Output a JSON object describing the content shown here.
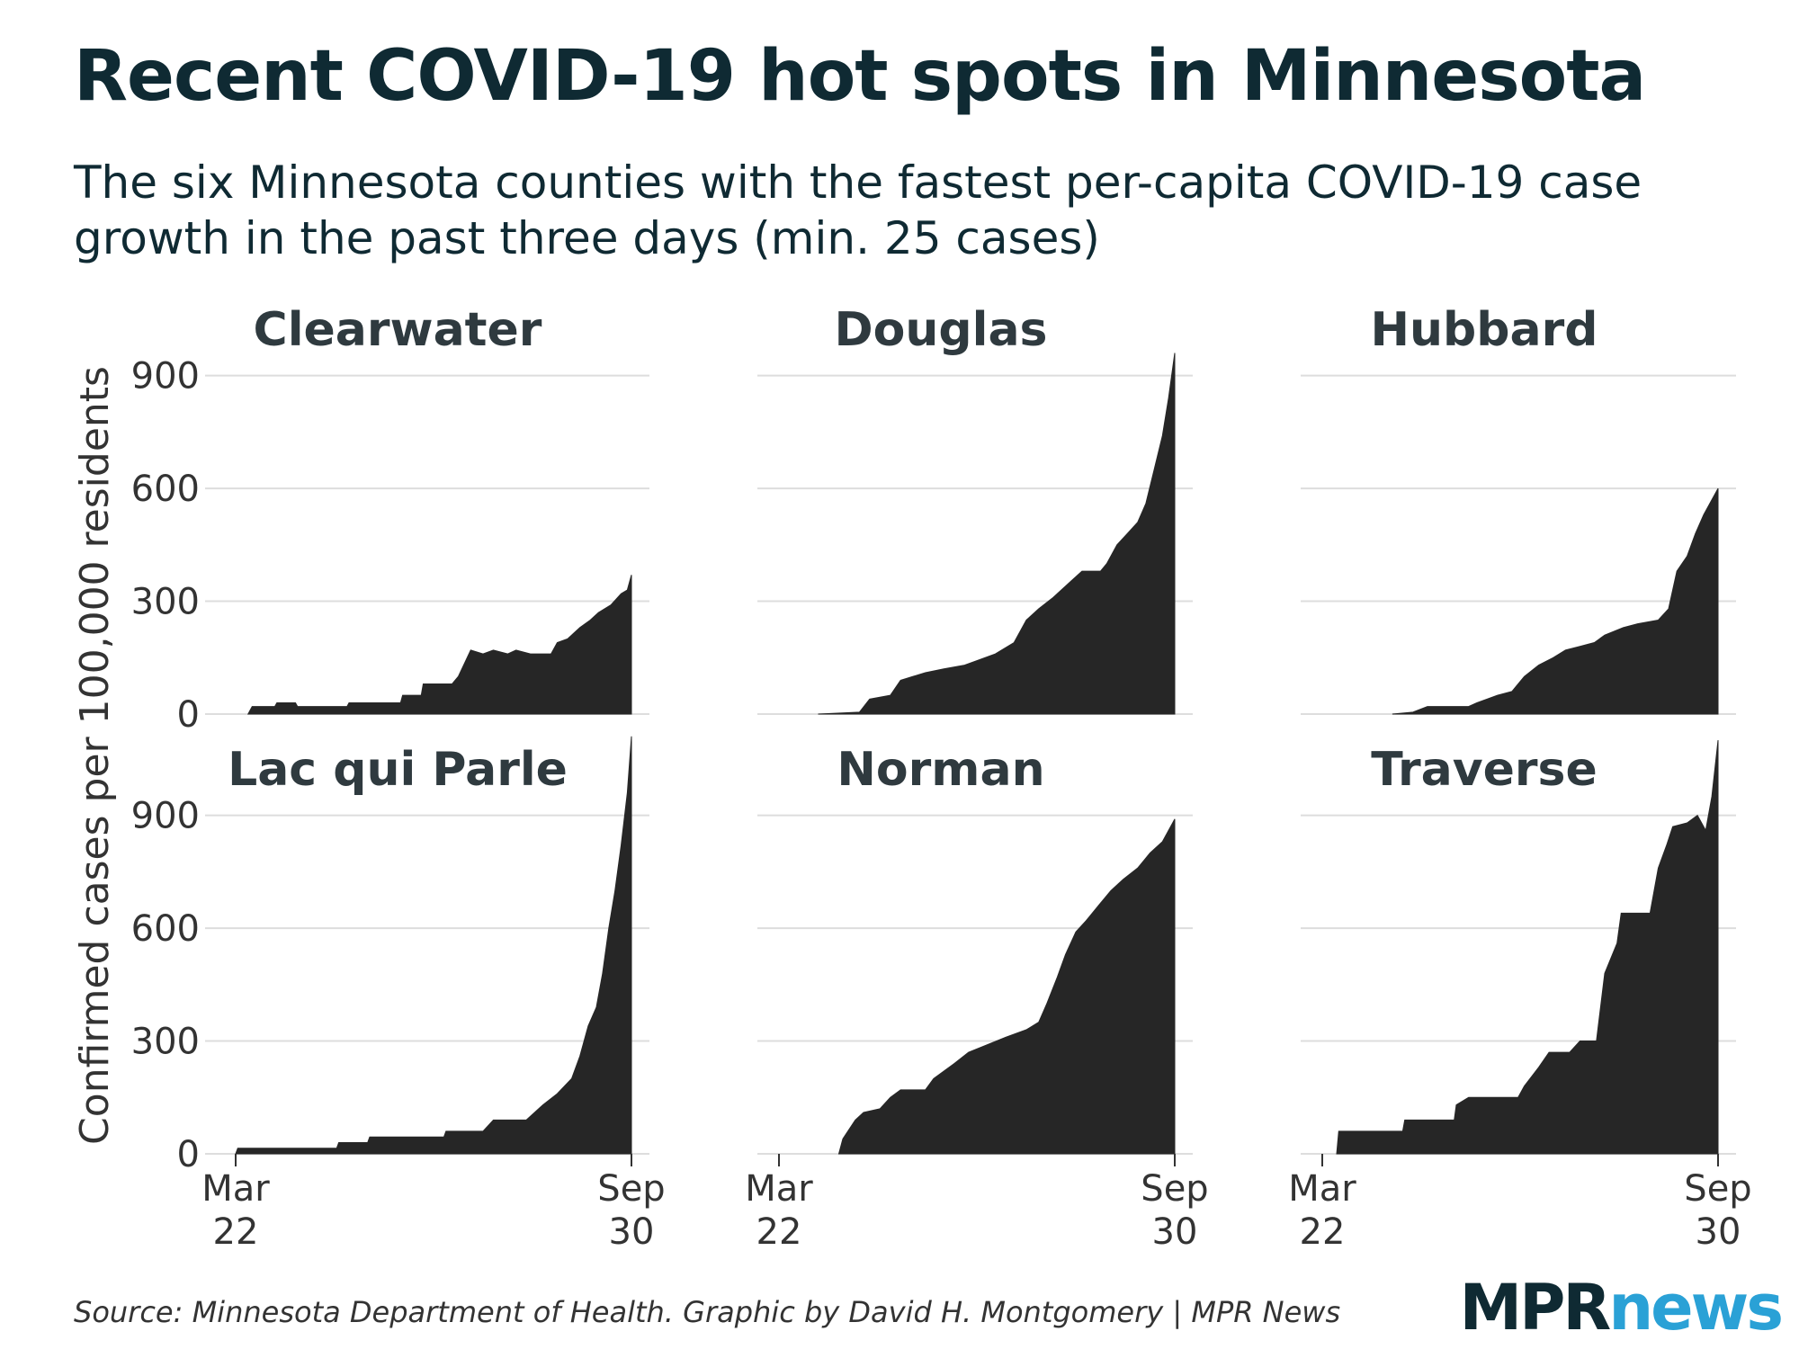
{
  "title": "Recent COVID-19 hot spots in Minnesota",
  "subtitle": "The six Minnesota counties with the fastest per-capita COVID-19 case growth in the past three days (min. 25 cases)",
  "source": "Source: Minnesota Department of Health. Graphic by David H. Montgomery | MPR News",
  "logo": {
    "part1": "MPR",
    "part2": "news"
  },
  "colors": {
    "fill": "#262626",
    "grid": "#dddddd",
    "text": "#0f2a33",
    "axis_text": "#333333",
    "logo_accent": "#2aa1d6"
  },
  "chart_data": {
    "type": "area",
    "ylabel": "Confirmed cases per 100,000 residents",
    "ylim": [
      0,
      1100
    ],
    "yticks": [
      "0",
      "300",
      "600",
      "900"
    ],
    "xrange": [
      "2020-03-22",
      "2020-09-30"
    ],
    "xticks": [
      {
        "date": "2020-03-22",
        "line1": "Mar",
        "line2": "22"
      },
      {
        "date": "2020-09-30",
        "line1": "Sep",
        "line2": "30"
      }
    ],
    "grid": true,
    "panels": [
      {
        "name": "Clearwater",
        "points": [
          [
            "2020-03-28",
            0
          ],
          [
            "2020-03-29",
            10
          ],
          [
            "2020-03-30",
            20
          ],
          [
            "2020-04-10",
            20
          ],
          [
            "2020-04-11",
            30
          ],
          [
            "2020-04-20",
            30
          ],
          [
            "2020-04-21",
            20
          ],
          [
            "2020-05-15",
            20
          ],
          [
            "2020-05-16",
            30
          ],
          [
            "2020-06-10",
            30
          ],
          [
            "2020-06-11",
            50
          ],
          [
            "2020-06-20",
            50
          ],
          [
            "2020-06-21",
            80
          ],
          [
            "2020-07-05",
            80
          ],
          [
            "2020-07-08",
            100
          ],
          [
            "2020-07-14",
            170
          ],
          [
            "2020-07-20",
            160
          ],
          [
            "2020-07-25",
            170
          ],
          [
            "2020-08-01",
            160
          ],
          [
            "2020-08-05",
            170
          ],
          [
            "2020-08-12",
            160
          ],
          [
            "2020-08-22",
            160
          ],
          [
            "2020-08-25",
            190
          ],
          [
            "2020-08-30",
            200
          ],
          [
            "2020-09-05",
            230
          ],
          [
            "2020-09-10",
            250
          ],
          [
            "2020-09-14",
            270
          ],
          [
            "2020-09-20",
            290
          ],
          [
            "2020-09-25",
            320
          ],
          [
            "2020-09-28",
            330
          ],
          [
            "2020-09-30",
            370
          ]
        ]
      },
      {
        "name": "Douglas",
        "points": [
          [
            "2020-04-10",
            0
          ],
          [
            "2020-04-30",
            5
          ],
          [
            "2020-05-05",
            40
          ],
          [
            "2020-05-15",
            50
          ],
          [
            "2020-05-20",
            90
          ],
          [
            "2020-06-01",
            110
          ],
          [
            "2020-06-10",
            120
          ],
          [
            "2020-06-20",
            130
          ],
          [
            "2020-06-25",
            140
          ],
          [
            "2020-07-05",
            160
          ],
          [
            "2020-07-14",
            190
          ],
          [
            "2020-07-20",
            250
          ],
          [
            "2020-07-26",
            280
          ],
          [
            "2020-08-02",
            310
          ],
          [
            "2020-08-10",
            350
          ],
          [
            "2020-08-16",
            380
          ],
          [
            "2020-08-25",
            380
          ],
          [
            "2020-08-28",
            400
          ],
          [
            "2020-09-02",
            450
          ],
          [
            "2020-09-07",
            480
          ],
          [
            "2020-09-12",
            510
          ],
          [
            "2020-09-16",
            560
          ],
          [
            "2020-09-20",
            650
          ],
          [
            "2020-09-24",
            740
          ],
          [
            "2020-09-27",
            840
          ],
          [
            "2020-09-30",
            960
          ]
        ]
      },
      {
        "name": "Hubbard",
        "points": [
          [
            "2020-04-25",
            0
          ],
          [
            "2020-05-05",
            5
          ],
          [
            "2020-05-12",
            20
          ],
          [
            "2020-05-25",
            20
          ],
          [
            "2020-06-01",
            20
          ],
          [
            "2020-06-05",
            30
          ],
          [
            "2020-06-15",
            50
          ],
          [
            "2020-06-22",
            60
          ],
          [
            "2020-06-28",
            100
          ],
          [
            "2020-07-05",
            130
          ],
          [
            "2020-07-12",
            150
          ],
          [
            "2020-07-18",
            170
          ],
          [
            "2020-07-25",
            180
          ],
          [
            "2020-08-01",
            190
          ],
          [
            "2020-08-06",
            210
          ],
          [
            "2020-08-15",
            230
          ],
          [
            "2020-08-22",
            240
          ],
          [
            "2020-09-01",
            250
          ],
          [
            "2020-09-06",
            280
          ],
          [
            "2020-09-10",
            380
          ],
          [
            "2020-09-15",
            420
          ],
          [
            "2020-09-19",
            480
          ],
          [
            "2020-09-23",
            530
          ],
          [
            "2020-09-30",
            600
          ]
        ]
      },
      {
        "name": "Lac qui Parle",
        "points": [
          [
            "2020-03-22",
            0
          ],
          [
            "2020-03-23",
            15
          ],
          [
            "2020-05-10",
            15
          ],
          [
            "2020-05-11",
            30
          ],
          [
            "2020-05-25",
            30
          ],
          [
            "2020-05-26",
            45
          ],
          [
            "2020-07-01",
            45
          ],
          [
            "2020-07-02",
            60
          ],
          [
            "2020-07-20",
            60
          ],
          [
            "2020-07-25",
            90
          ],
          [
            "2020-08-10",
            90
          ],
          [
            "2020-08-18",
            130
          ],
          [
            "2020-08-25",
            160
          ],
          [
            "2020-09-01",
            200
          ],
          [
            "2020-09-05",
            260
          ],
          [
            "2020-09-09",
            340
          ],
          [
            "2020-09-13",
            390
          ],
          [
            "2020-09-16",
            480
          ],
          [
            "2020-09-19",
            600
          ],
          [
            "2020-09-22",
            700
          ],
          [
            "2020-09-25",
            820
          ],
          [
            "2020-09-28",
            960
          ],
          [
            "2020-09-30",
            1110
          ]
        ]
      },
      {
        "name": "Norman",
        "points": [
          [
            "2020-04-20",
            0
          ],
          [
            "2020-04-22",
            40
          ],
          [
            "2020-04-28",
            90
          ],
          [
            "2020-05-02",
            110
          ],
          [
            "2020-05-10",
            120
          ],
          [
            "2020-05-15",
            150
          ],
          [
            "2020-05-20",
            170
          ],
          [
            "2020-06-01",
            170
          ],
          [
            "2020-06-05",
            200
          ],
          [
            "2020-06-15",
            240
          ],
          [
            "2020-06-22",
            270
          ],
          [
            "2020-07-01",
            290
          ],
          [
            "2020-07-10",
            310
          ],
          [
            "2020-07-20",
            330
          ],
          [
            "2020-07-26",
            350
          ],
          [
            "2020-07-30",
            400
          ],
          [
            "2020-08-04",
            470
          ],
          [
            "2020-08-08",
            530
          ],
          [
            "2020-08-13",
            590
          ],
          [
            "2020-08-18",
            620
          ],
          [
            "2020-08-24",
            660
          ],
          [
            "2020-08-30",
            700
          ],
          [
            "2020-09-05",
            730
          ],
          [
            "2020-09-12",
            760
          ],
          [
            "2020-09-18",
            800
          ],
          [
            "2020-09-24",
            830
          ],
          [
            "2020-09-30",
            890
          ]
        ]
      },
      {
        "name": "Traverse",
        "points": [
          [
            "2020-03-29",
            0
          ],
          [
            "2020-03-30",
            60
          ],
          [
            "2020-04-30",
            60
          ],
          [
            "2020-05-01",
            90
          ],
          [
            "2020-05-25",
            90
          ],
          [
            "2020-05-26",
            130
          ],
          [
            "2020-06-01",
            150
          ],
          [
            "2020-06-25",
            150
          ],
          [
            "2020-06-28",
            180
          ],
          [
            "2020-07-05",
            230
          ],
          [
            "2020-07-10",
            270
          ],
          [
            "2020-07-20",
            270
          ],
          [
            "2020-07-25",
            300
          ],
          [
            "2020-08-02",
            300
          ],
          [
            "2020-08-06",
            480
          ],
          [
            "2020-08-12",
            560
          ],
          [
            "2020-08-14",
            640
          ],
          [
            "2020-08-28",
            640
          ],
          [
            "2020-09-01",
            760
          ],
          [
            "2020-09-05",
            820
          ],
          [
            "2020-09-08",
            870
          ],
          [
            "2020-09-15",
            880
          ],
          [
            "2020-09-20",
            900
          ],
          [
            "2020-09-24",
            860
          ],
          [
            "2020-09-27",
            950
          ],
          [
            "2020-09-30",
            1100
          ]
        ]
      }
    ]
  }
}
